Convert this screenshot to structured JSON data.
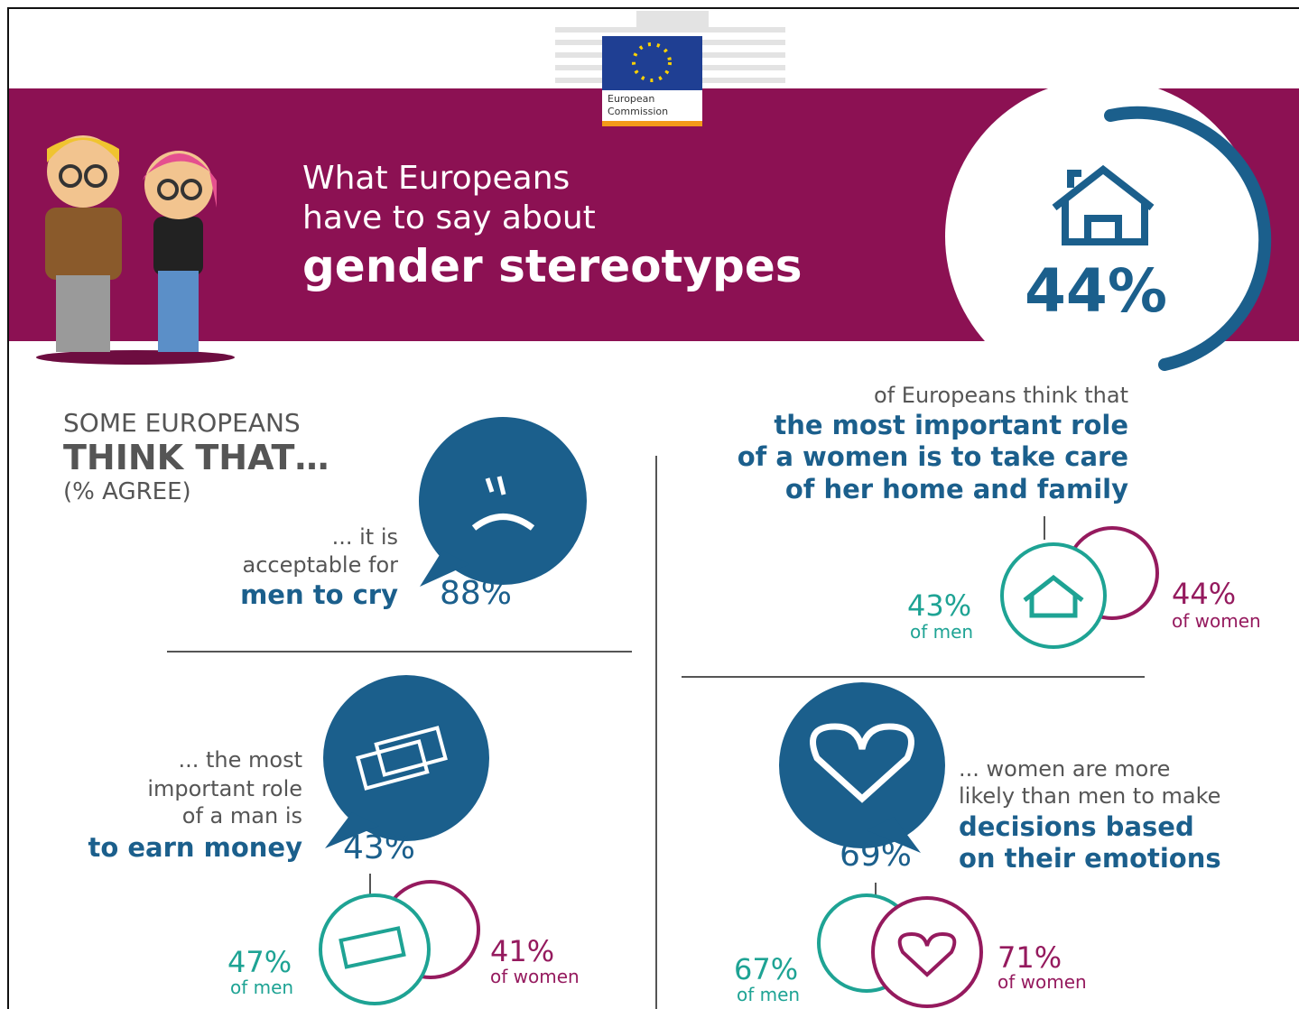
{
  "logo": {
    "line1": "European",
    "line2": "Commission"
  },
  "header": {
    "title_line1": "What Europeans",
    "title_line2": "have to say about",
    "title_line3": "gender stereotypes"
  },
  "hero": {
    "value": "44%"
  },
  "intro": {
    "line1": "SOME EUROPEANS",
    "line2": "THINK THAT…",
    "line3": "(% AGREE)"
  },
  "items": [
    {
      "lines": [
        "... it is",
        "acceptable for"
      ],
      "bold": [
        "men to cry"
      ],
      "value": "88%"
    },
    {
      "lead": "of Europeans think that",
      "bold": [
        "the most important role",
        "of a women is to take care",
        "of her home and family"
      ],
      "men_value": "43%",
      "men_label": "of men",
      "women_value": "44%",
      "women_label": "of women"
    },
    {
      "lines": [
        "... the most",
        "important role",
        "of a man is"
      ],
      "bold": [
        "to earn money"
      ],
      "value": "43%",
      "men_value": "47%",
      "men_label": "of men",
      "women_value": "41%",
      "women_label": "of women"
    },
    {
      "lines": [
        "... women are more",
        "likely than men to make"
      ],
      "bold": [
        "decisions based",
        "on their emotions"
      ],
      "value": "69%",
      "men_value": "67%",
      "men_label": "of men",
      "women_value": "71%",
      "women_label": "of women"
    }
  ]
}
